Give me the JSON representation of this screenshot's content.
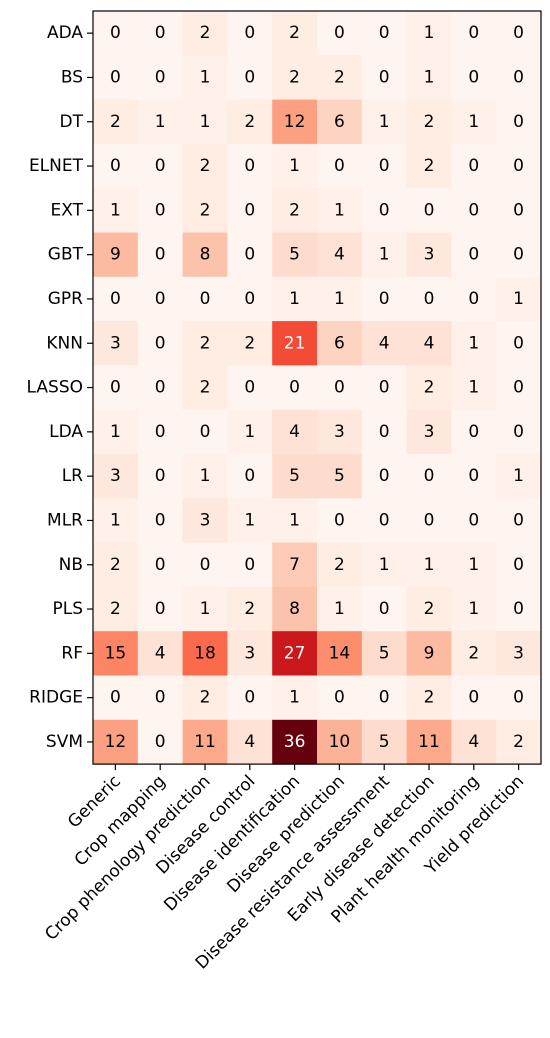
{
  "chart_data": {
    "type": "heatmap",
    "colormap": "Reds",
    "value_range": [
      0,
      36
    ],
    "rows": [
      "ADA",
      "BS",
      "DT",
      "ELNET",
      "EXT",
      "GBT",
      "GPR",
      "KNN",
      "LASSO",
      "LDA",
      "LR",
      "MLR",
      "NB",
      "PLS",
      "RF",
      "RIDGE",
      "SVM"
    ],
    "columns": [
      "Generic",
      "Crop mapping",
      "Crop phenology prediction",
      "Disease control",
      "Disease identification",
      "Disease prediction",
      "Disease resistance assessment",
      "Early disease detection",
      "Plant health monitoring",
      "Yield prediction"
    ],
    "values": [
      [
        0,
        0,
        2,
        0,
        2,
        0,
        0,
        1,
        0,
        0
      ],
      [
        0,
        0,
        1,
        0,
        2,
        2,
        0,
        1,
        0,
        0
      ],
      [
        2,
        1,
        1,
        2,
        12,
        6,
        1,
        2,
        1,
        0
      ],
      [
        0,
        0,
        2,
        0,
        1,
        0,
        0,
        2,
        0,
        0
      ],
      [
        1,
        0,
        2,
        0,
        2,
        1,
        0,
        0,
        0,
        0
      ],
      [
        9,
        0,
        8,
        0,
        5,
        4,
        1,
        3,
        0,
        0
      ],
      [
        0,
        0,
        0,
        0,
        1,
        1,
        0,
        0,
        0,
        1
      ],
      [
        3,
        0,
        2,
        2,
        21,
        6,
        4,
        4,
        1,
        0
      ],
      [
        0,
        0,
        2,
        0,
        0,
        0,
        0,
        2,
        1,
        0
      ],
      [
        1,
        0,
        0,
        1,
        4,
        3,
        0,
        3,
        0,
        0
      ],
      [
        3,
        0,
        1,
        0,
        5,
        5,
        0,
        0,
        0,
        1
      ],
      [
        1,
        0,
        3,
        1,
        1,
        0,
        0,
        0,
        0,
        0
      ],
      [
        2,
        0,
        0,
        0,
        7,
        2,
        1,
        1,
        1,
        0
      ],
      [
        2,
        0,
        1,
        2,
        8,
        1,
        0,
        2,
        1,
        0
      ],
      [
        15,
        4,
        18,
        3,
        27,
        14,
        5,
        9,
        2,
        3
      ],
      [
        0,
        0,
        2,
        0,
        1,
        0,
        0,
        2,
        0,
        0
      ],
      [
        12,
        0,
        11,
        4,
        36,
        10,
        5,
        11,
        4,
        2
      ]
    ]
  }
}
